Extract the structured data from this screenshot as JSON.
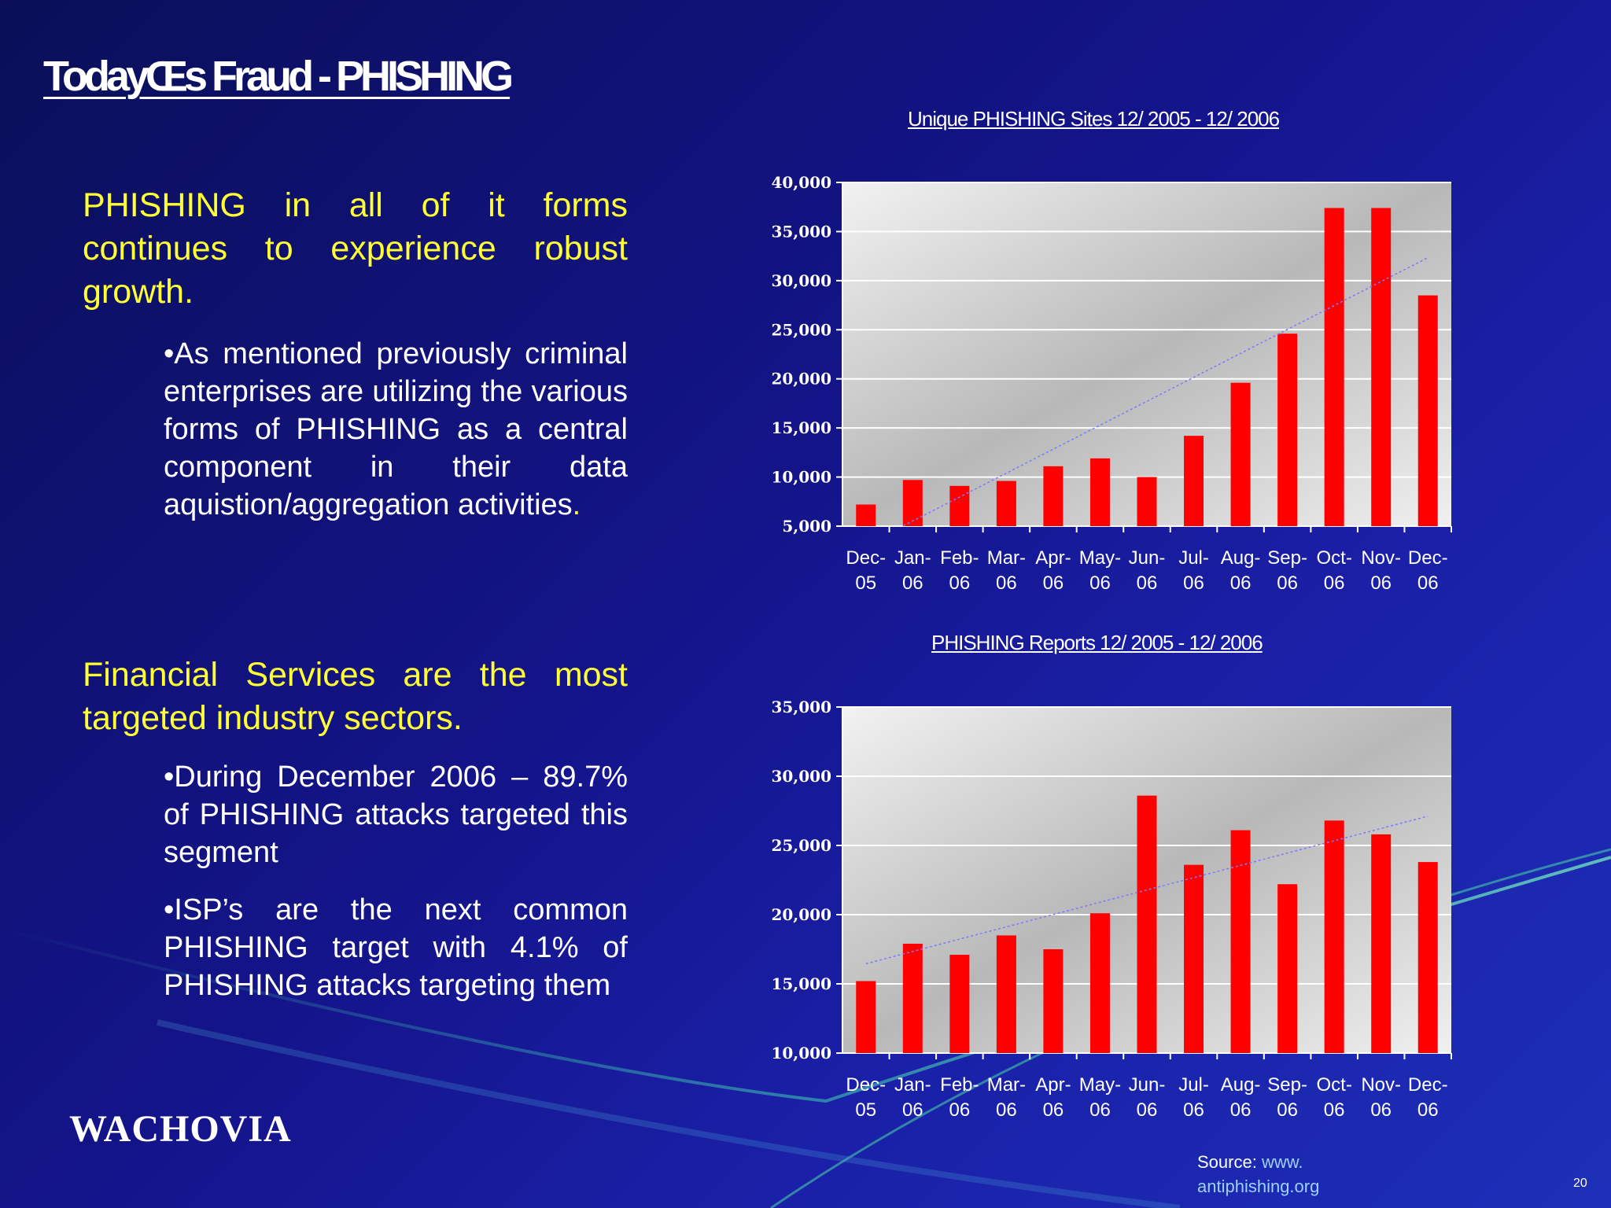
{
  "slide": {
    "title": "TodayŒs Fraud - PHISHING",
    "page_number": "20",
    "logo": "WACHOVIA",
    "source_label": "Source: ",
    "source_url_1": "www.",
    "source_url_2": "antiphishing.org"
  },
  "left": {
    "heading1": "PHISHING in all of it forms continues to experience robust growth.",
    "bullet1": "•As mentioned previously criminal enterprises are utilizing the various forms of PHISHING as a central component in their data aquistion/aggregation activities",
    "bullet1_end": ".",
    "heading2": "Financial Services are the most targeted industry sectors.",
    "bullet2": "•During December 2006 – 89.7% of PHISHING attacks targeted this segment",
    "bullet3": "•ISP’s are the next common PHISHING target with 4.1% of PHISHING attacks targeting them"
  },
  "colors": {
    "bar": "#ff0000",
    "trend": "#7a7aff",
    "text_yellow": "#ffff33"
  },
  "chart_data": [
    {
      "type": "bar",
      "title": "Unique PHISHING Sites 12/ 2005 - 12/ 2006",
      "categories": [
        [
          "Dec-",
          "05"
        ],
        [
          "Jan-",
          "06"
        ],
        [
          "Feb-",
          "06"
        ],
        [
          "Mar-",
          "06"
        ],
        [
          "Apr-",
          "06"
        ],
        [
          "May-",
          "06"
        ],
        [
          "Jun-",
          "06"
        ],
        [
          "Jul-",
          "06"
        ],
        [
          "Aug-",
          "06"
        ],
        [
          "Sep-",
          "06"
        ],
        [
          "Oct-",
          "06"
        ],
        [
          "Nov-",
          "06"
        ],
        [
          "Dec-",
          "06"
        ]
      ],
      "values": [
        7200,
        9700,
        9100,
        9600,
        11100,
        11900,
        10000,
        14200,
        19600,
        24600,
        37400,
        37400,
        28500
      ],
      "ylim": [
        5000,
        40000
      ],
      "yticks": [
        "5,000",
        "10,000",
        "15,000",
        "20,000",
        "25,000",
        "30,000",
        "35,000",
        "40,000"
      ],
      "ytick_values": [
        5000,
        10000,
        15000,
        20000,
        25000,
        30000,
        35000,
        40000
      ],
      "trendline": true,
      "grid": true
    },
    {
      "type": "bar",
      "title": "PHISHING Reports 12/ 2005 - 12/ 2006",
      "categories": [
        [
          "Dec-",
          "05"
        ],
        [
          "Jan-",
          "06"
        ],
        [
          "Feb-",
          "06"
        ],
        [
          "Mar-",
          "06"
        ],
        [
          "Apr-",
          "06"
        ],
        [
          "May-",
          "06"
        ],
        [
          "Jun-",
          "06"
        ],
        [
          "Jul-",
          "06"
        ],
        [
          "Aug-",
          "06"
        ],
        [
          "Sep-",
          "06"
        ],
        [
          "Oct-",
          "06"
        ],
        [
          "Nov-",
          "06"
        ],
        [
          "Dec-",
          "06"
        ]
      ],
      "values": [
        15200,
        17900,
        17100,
        18500,
        17500,
        20100,
        28600,
        23600,
        26100,
        22200,
        26800,
        25800,
        23800
      ],
      "ylim": [
        10000,
        35000
      ],
      "yticks": [
        "10,000",
        "15,000",
        "20,000",
        "25,000",
        "30,000",
        "35,000"
      ],
      "ytick_values": [
        10000,
        15000,
        20000,
        25000,
        30000,
        35000
      ],
      "trendline": true,
      "grid": true
    }
  ]
}
